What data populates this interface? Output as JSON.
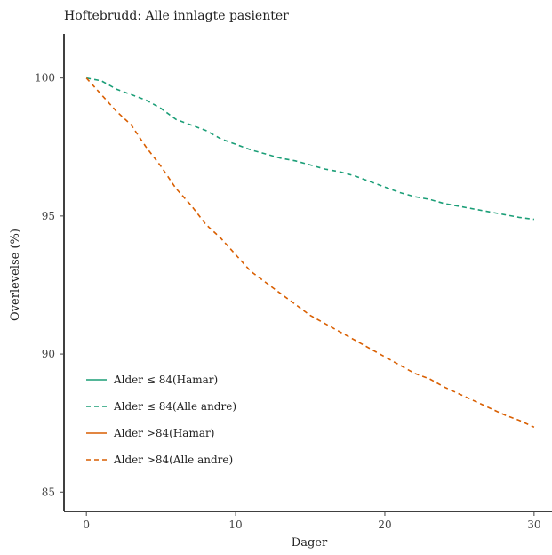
{
  "chart_data": {
    "type": "line",
    "title": "Hoftebrudd: Alle innlagte pasienter",
    "xlabel": "Dager",
    "ylabel": "Overlevelse (%)",
    "xlim": [
      -1.5,
      31.2
    ],
    "ylim": [
      84.3,
      101.6
    ],
    "xticks": [
      0,
      10,
      20,
      30
    ],
    "yticks": [
      85,
      90,
      95,
      100
    ],
    "grid": false,
    "legend_position": "bottom-left",
    "series": [
      {
        "name": "Alder ≤ 84(Hamar)",
        "color": "#1b9e77",
        "dash": "solid",
        "points": []
      },
      {
        "name": "Alder ≤ 84(Alle andre)",
        "color": "#1b9e77",
        "dash": "dashed",
        "points": [
          [
            0,
            100
          ],
          [
            1,
            99.9
          ],
          [
            2,
            99.6
          ],
          [
            3,
            99.4
          ],
          [
            4,
            99.2
          ],
          [
            5,
            98.9
          ],
          [
            6,
            98.5
          ],
          [
            7,
            98.3
          ],
          [
            8,
            98.1
          ],
          [
            9,
            97.8
          ],
          [
            10,
            97.6
          ],
          [
            11,
            97.4
          ],
          [
            12,
            97.25
          ],
          [
            13,
            97.1
          ],
          [
            14,
            97.0
          ],
          [
            15,
            96.85
          ],
          [
            16,
            96.7
          ],
          [
            17,
            96.6
          ],
          [
            18,
            96.45
          ],
          [
            19,
            96.25
          ],
          [
            20,
            96.05
          ],
          [
            21,
            95.85
          ],
          [
            22,
            95.7
          ],
          [
            23,
            95.6
          ],
          [
            24,
            95.45
          ],
          [
            25,
            95.35
          ],
          [
            26,
            95.25
          ],
          [
            27,
            95.15
          ],
          [
            28,
            95.05
          ],
          [
            29,
            94.95
          ],
          [
            30,
            94.88
          ]
        ]
      },
      {
        "name": "Alder >84(Hamar)",
        "color": "#d95f02",
        "dash": "solid",
        "points": []
      },
      {
        "name": "Alder >84(Alle andre)",
        "color": "#d95f02",
        "dash": "dashed",
        "points": [
          [
            0,
            100
          ],
          [
            1,
            99.4
          ],
          [
            2,
            98.8
          ],
          [
            3,
            98.3
          ],
          [
            4,
            97.5
          ],
          [
            5,
            96.8
          ],
          [
            6,
            96.0
          ],
          [
            7,
            95.4
          ],
          [
            8,
            94.7
          ],
          [
            9,
            94.2
          ],
          [
            10,
            93.6
          ],
          [
            11,
            93.0
          ],
          [
            12,
            92.6
          ],
          [
            13,
            92.2
          ],
          [
            14,
            91.8
          ],
          [
            15,
            91.4
          ],
          [
            16,
            91.1
          ],
          [
            17,
            90.8
          ],
          [
            18,
            90.5
          ],
          [
            19,
            90.2
          ],
          [
            20,
            89.9
          ],
          [
            21,
            89.6
          ],
          [
            22,
            89.3
          ],
          [
            23,
            89.1
          ],
          [
            24,
            88.8
          ],
          [
            25,
            88.55
          ],
          [
            26,
            88.3
          ],
          [
            27,
            88.05
          ],
          [
            28,
            87.8
          ],
          [
            29,
            87.6
          ],
          [
            30,
            87.35
          ]
        ]
      }
    ]
  }
}
